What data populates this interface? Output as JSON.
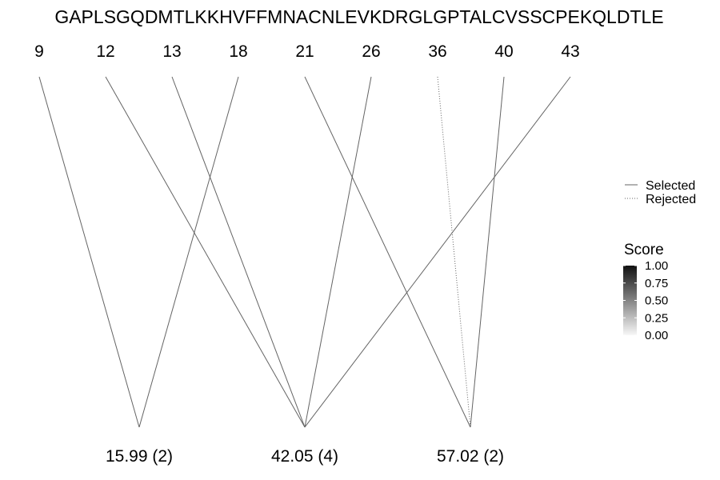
{
  "sequence": "GAPLSGQDMTLKKHVFFMNACNLEVKDRGLGPTALCVSSCPEKQLDTLE",
  "positions": [
    "9",
    "12",
    "13",
    "18",
    "21",
    "26",
    "36",
    "40",
    "43"
  ],
  "modifications": [
    "15.99 (2)",
    "42.05 (4)",
    "57.02 (2)"
  ],
  "links": [
    {
      "from": 0,
      "to": 0,
      "status": "selected",
      "score": 0.45
    },
    {
      "from": 3,
      "to": 0,
      "status": "selected",
      "score": 0.45
    },
    {
      "from": 1,
      "to": 1,
      "status": "selected",
      "score": 0.45
    },
    {
      "from": 2,
      "to": 1,
      "status": "selected",
      "score": 0.45
    },
    {
      "from": 5,
      "to": 1,
      "status": "selected",
      "score": 0.45
    },
    {
      "from": 8,
      "to": 1,
      "status": "selected",
      "score": 0.45
    },
    {
      "from": 4,
      "to": 2,
      "status": "selected",
      "score": 0.45
    },
    {
      "from": 7,
      "to": 2,
      "status": "selected",
      "score": 0.45
    },
    {
      "from": 6,
      "to": 2,
      "status": "rejected",
      "score": 0.45
    }
  ],
  "legend": {
    "linetype": {
      "selected": "Selected",
      "rejected": "Rejected"
    },
    "score": {
      "title": "Score",
      "ticks": [
        "1.00",
        "0.75",
        "0.50",
        "0.25",
        "0.00"
      ]
    }
  },
  "colors": {
    "line": "#646464",
    "text": "#000000"
  }
}
